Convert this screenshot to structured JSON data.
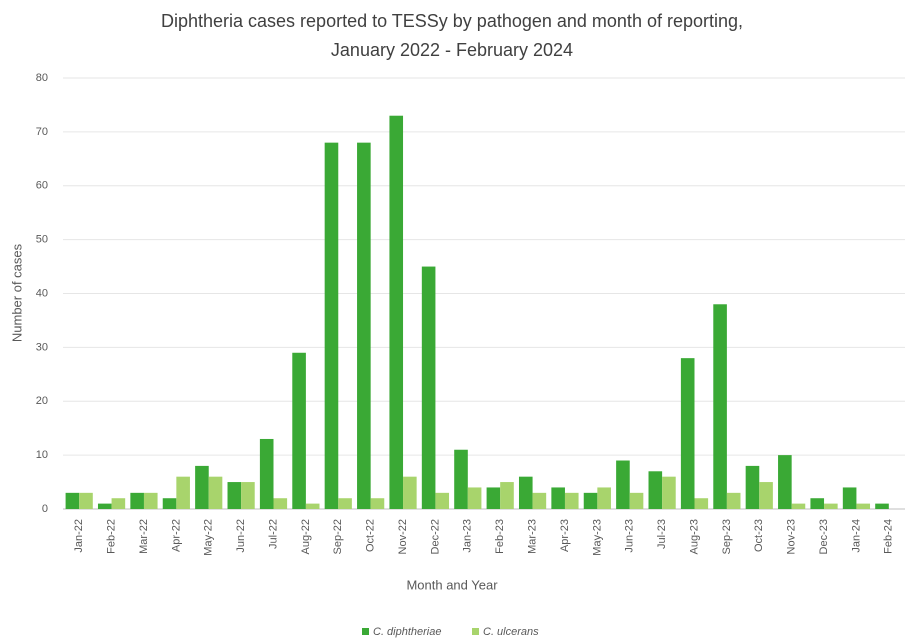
{
  "chart_data": {
    "type": "grouped_bar",
    "title": [
      "Diphtheria cases reported to TESSy by pathogen and month of reporting,",
      "January 2022 - February 2024"
    ],
    "x_label": "Month and Year",
    "y_label": "Number of cases",
    "categories": [
      "Jan-22",
      "Feb-22",
      "Mar-22",
      "Apr-22",
      "May-22",
      "Jun-22",
      "Jul-22",
      "Aug-22",
      "Sep-22",
      "Oct-22",
      "Nov-22",
      "Dec-22",
      "Jan-23",
      "Feb-23",
      "Mar-23",
      "Apr-23",
      "May-23",
      "Jun-23",
      "Jul-23",
      "Aug-23",
      "Sep-23",
      "Oct-23",
      "Nov-23",
      "Dec-23",
      "Jan-24",
      "Feb-24"
    ],
    "series": [
      {
        "name": "C. diphtheriae",
        "color": "#3aa935",
        "values": [
          3,
          1,
          3,
          2,
          8,
          5,
          13,
          29,
          68,
          68,
          73,
          45,
          11,
          4,
          6,
          4,
          3,
          9,
          7,
          28,
          38,
          8,
          10,
          2,
          4,
          1
        ]
      },
      {
        "name": "C. ulcerans",
        "color": "#a8d46c",
        "values": [
          3,
          2,
          3,
          6,
          6,
          5,
          2,
          1,
          2,
          2,
          6,
          3,
          4,
          5,
          3,
          3,
          4,
          3,
          6,
          2,
          3,
          5,
          1,
          1,
          1,
          0
        ]
      }
    ],
    "ylim": [
      0,
      80
    ],
    "yticks": [
      0,
      10,
      20,
      30,
      40,
      50,
      60,
      70,
      80
    ],
    "grid": true,
    "legend": "bottom"
  }
}
